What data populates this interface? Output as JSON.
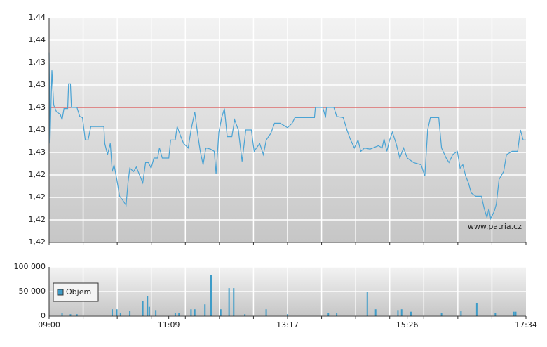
{
  "chart_data": [
    {
      "type": "line",
      "xlim": [
        540,
        1054
      ],
      "ylim": [
        1.418,
        1.438
      ],
      "yticks": [
        {
          "value": 1.418,
          "label": "1,42"
        },
        {
          "value": 1.42,
          "label": "1,42"
        },
        {
          "value": 1.422,
          "label": "1,42"
        },
        {
          "value": 1.424,
          "label": "1,42"
        },
        {
          "value": 1.426,
          "label": "1,43"
        },
        {
          "value": 1.428,
          "label": "1,43"
        },
        {
          "value": 1.43,
          "label": "1,43"
        },
        {
          "value": 1.432,
          "label": "1,43"
        },
        {
          "value": 1.434,
          "label": "1,43"
        },
        {
          "value": 1.436,
          "label": "1,44"
        },
        {
          "value": 1.438,
          "label": "1,44"
        }
      ],
      "grid": true,
      "reference_line": {
        "value": 1.43,
        "color": "#cc2222"
      },
      "annotation": "www.patria.cz",
      "x": [
        540,
        541,
        543,
        545,
        548,
        552,
        554,
        556,
        560,
        561,
        563,
        564,
        570,
        573,
        576,
        579,
        582,
        585,
        599,
        600,
        603,
        606,
        608,
        610,
        613,
        616,
        619,
        623,
        625,
        627,
        631,
        634,
        638,
        641,
        644,
        647,
        650,
        653,
        657,
        659,
        662,
        669,
        671,
        676,
        678,
        682,
        685,
        690,
        693,
        697,
        700,
        703,
        706,
        709,
        714,
        718,
        720,
        723,
        726,
        729,
        732,
        737,
        740,
        744,
        748,
        752,
        758,
        761,
        767,
        771,
        774,
        779,
        783,
        789,
        797,
        802,
        805,
        826,
        827,
        835,
        838,
        839,
        847,
        850,
        857,
        861,
        865,
        869,
        873,
        876,
        880,
        886,
        895,
        899,
        901,
        904,
        907,
        910,
        914,
        918,
        922,
        926,
        933,
        941,
        945,
        948,
        951,
        960,
        963,
        968,
        971,
        975,
        980,
        983,
        986,
        989,
        992,
        995,
        1000,
        1006,
        1009,
        1012,
        1014,
        1016,
        1020,
        1022,
        1025,
        1030,
        1033,
        1039,
        1045,
        1048,
        1051,
        1054
      ],
      "series": [
        {
          "color": "#4aa3d4",
          "values": [
            1.4349,
            1.4268,
            1.4333,
            1.4302,
            1.4296,
            1.4294,
            1.4289,
            1.4299,
            1.4299,
            1.4321,
            1.4321,
            1.43,
            1.43,
            1.4292,
            1.4291,
            1.4271,
            1.4271,
            1.4283,
            1.4283,
            1.4268,
            1.4258,
            1.4268,
            1.4243,
            1.4249,
            1.4236,
            1.4221,
            1.4218,
            1.4213,
            1.4233,
            1.4246,
            1.4243,
            1.4247,
            1.4239,
            1.4233,
            1.4251,
            1.4251,
            1.4246,
            1.4255,
            1.4255,
            1.4264,
            1.4255,
            1.4255,
            1.4271,
            1.4271,
            1.4283,
            1.4274,
            1.4268,
            1.4264,
            1.428,
            1.4296,
            1.4277,
            1.4261,
            1.4249,
            1.4264,
            1.4263,
            1.4261,
            1.4241,
            1.4278,
            1.4291,
            1.4299,
            1.4274,
            1.4274,
            1.4289,
            1.428,
            1.4252,
            1.428,
            1.428,
            1.4261,
            1.4268,
            1.4258,
            1.4271,
            1.4277,
            1.4286,
            1.4286,
            1.4282,
            1.4286,
            1.4291,
            1.4291,
            1.43,
            1.43,
            1.4291,
            1.43,
            1.43,
            1.4292,
            1.4291,
            1.428,
            1.4271,
            1.4264,
            1.4271,
            1.4261,
            1.4264,
            1.4263,
            1.4266,
            1.4264,
            1.4272,
            1.4261,
            1.4271,
            1.4278,
            1.4268,
            1.4255,
            1.4264,
            1.4255,
            1.4251,
            1.4249,
            1.4239,
            1.428,
            1.4291,
            1.4291,
            1.4264,
            1.4255,
            1.4251,
            1.4258,
            1.4261,
            1.4246,
            1.4249,
            1.4239,
            1.4233,
            1.4224,
            1.4221,
            1.4221,
            1.421,
            1.4202,
            1.421,
            1.4201,
            1.4208,
            1.4214,
            1.4236,
            1.4243,
            1.4258,
            1.4261,
            1.4261,
            1.428,
            1.4271,
            1.4271
          ]
        }
      ]
    },
    {
      "type": "bar",
      "xlim": [
        540,
        1054
      ],
      "ylim": [
        0,
        100000
      ],
      "yticks": [
        0,
        {
          "value": 50000,
          "label": "50 000"
        },
        {
          "value": 100000,
          "label": "100 000"
        }
      ],
      "xticks": [
        {
          "value": 540,
          "label": "09:00"
        },
        {
          "value": 669,
          "label": "11:09"
        },
        {
          "value": 797,
          "label": "13:17"
        },
        {
          "value": 926,
          "label": "15:26"
        },
        {
          "value": 1054,
          "label": "17:34"
        }
      ],
      "grid": true,
      "legend": "upper left",
      "x": [
        554,
        563,
        570,
        608,
        613,
        617,
        627,
        641,
        646,
        648,
        655,
        676,
        680,
        693,
        697,
        708,
        714,
        715,
        725,
        734,
        739,
        751,
        774,
        797,
        841,
        850,
        883,
        892,
        916,
        920,
        930,
        963,
        984,
        1001,
        1021,
        1041,
        1043
      ],
      "series": [
        {
          "name": "Objem",
          "color": "#3e9cc8",
          "values": [
            7000,
            4000,
            4000,
            14000,
            14000,
            6000,
            10000,
            31000,
            40000,
            19000,
            11000,
            7000,
            7000,
            14000,
            14000,
            24000,
            83000,
            83000,
            14000,
            57000,
            57000,
            4000,
            14000,
            4000,
            7000,
            6000,
            50000,
            14000,
            11000,
            14000,
            9000,
            6000,
            10000,
            26000,
            7000,
            9000,
            9000
          ]
        }
      ]
    }
  ]
}
